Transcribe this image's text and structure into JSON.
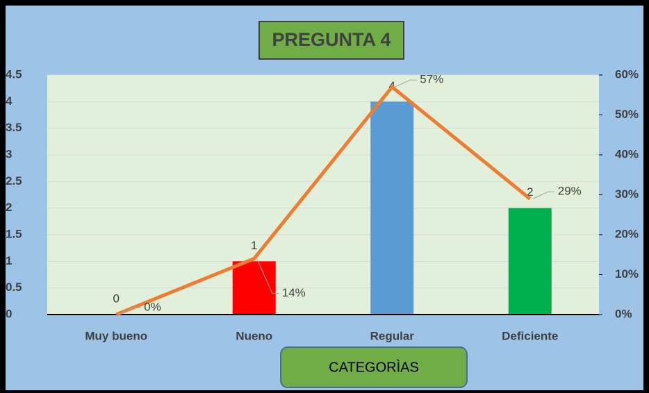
{
  "chart_data": {
    "type": "bar",
    "title": "PREGUNTA 4",
    "x_label": "CATEGORÌAS",
    "categories": [
      "Muy bueno",
      "Nueno",
      "Regular",
      "Deficiente"
    ],
    "series": [
      {
        "type": "bar",
        "colors": [
          "#5b9bd5",
          "#ff0000",
          "#5b9bd5",
          "#00b050"
        ],
        "values": [
          0,
          1,
          4,
          2
        ]
      },
      {
        "type": "line",
        "color": "#ed7d31",
        "axis": "y2",
        "values": [
          0,
          14,
          57,
          29
        ],
        "value_labels": [
          "0%",
          "14%",
          "57%",
          "29%"
        ]
      }
    ],
    "ylim": [
      0,
      4.5
    ],
    "yticks": [
      0,
      0.5,
      1,
      1.5,
      2,
      2.5,
      3,
      3.5,
      4,
      4.5
    ],
    "y2lim": [
      0,
      60
    ],
    "y2ticks": [
      {
        "value": 0,
        "label": "0%"
      },
      {
        "value": 10,
        "label": "10%"
      },
      {
        "value": 20,
        "label": "20%"
      },
      {
        "value": 30,
        "label": "30%"
      },
      {
        "value": 40,
        "label": "40%"
      },
      {
        "value": 50,
        "label": "50%"
      },
      {
        "value": 60,
        "label": "60%"
      }
    ],
    "grid": true
  }
}
